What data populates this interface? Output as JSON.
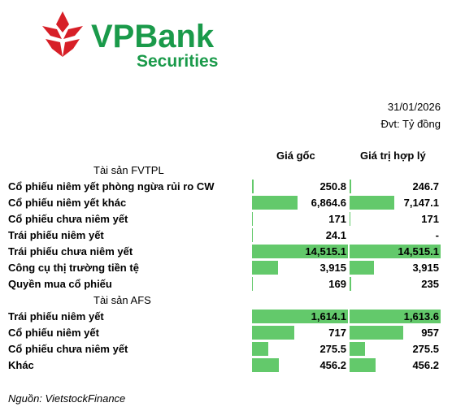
{
  "header": {
    "logo_text": "VPBank",
    "logo_subtext": "Securities",
    "date": "31/01/2026",
    "unit": "Đvt: Tỷ đồng"
  },
  "table": {
    "columns": [
      "Giá gốc",
      "Giá trị hợp lý"
    ],
    "sections": [
      {
        "title": "Tài sản FVTPL",
        "rows": [
          {
            "label": "Cổ phiếu niêm yết phòng ngừa rủi ro CW",
            "values": [
              250.8,
              246.7
            ]
          },
          {
            "label": "Cổ phiếu niêm yết khác",
            "values": [
              {
                "value": 6864.6,
                "label": "6,864.6"
              },
              {
                "value": 7147.1,
                "label": "7,147.1"
              }
            ]
          },
          {
            "label": "Cổ phiếu chưa niêm yết",
            "values": [
              171.0,
              171.0
            ]
          },
          {
            "label": "Trái phiếu niêm yết",
            "values": [
              24.1,
              "-"
            ]
          },
          {
            "label": "Trái phiếu chưa niêm yết",
            "values": [
              {
                "value": 14515.1,
                "label": "14,515.1"
              },
              {
                "value": 14515.1,
                "label": "14,515.1"
              }
            ]
          },
          {
            "label": "Công cụ thị trường tiền tệ",
            "values": [
              {
                "value": 3915,
                "label": "3,915"
              },
              {
                "value": 3915,
                "label": "3,915"
              }
            ]
          },
          {
            "label": "Quyền mua cổ phiếu",
            "values": [
              169,
              235
            ]
          }
        ]
      },
      {
        "title": "Tài sản AFS",
        "rows": [
          {
            "label": "Trái phiếu niêm yết",
            "values": [
              {
                "value": 1614.1,
                "label": "1,614.1"
              },
              {
                "value": 1613.6,
                "label": "1,613.6"
              }
            ]
          },
          {
            "label": "Cổ phiếu niêm yết",
            "values": [
              717.0,
              957.0
            ]
          },
          {
            "label": "Cổ phiếu chưa niêm yết",
            "values": [
              275.5,
              275.5
            ]
          },
          {
            "label": "Khác",
            "values": [
              456.2,
              456.2
            ]
          }
        ]
      }
    ]
  },
  "source": "Nguồn: VietstockFinance"
}
